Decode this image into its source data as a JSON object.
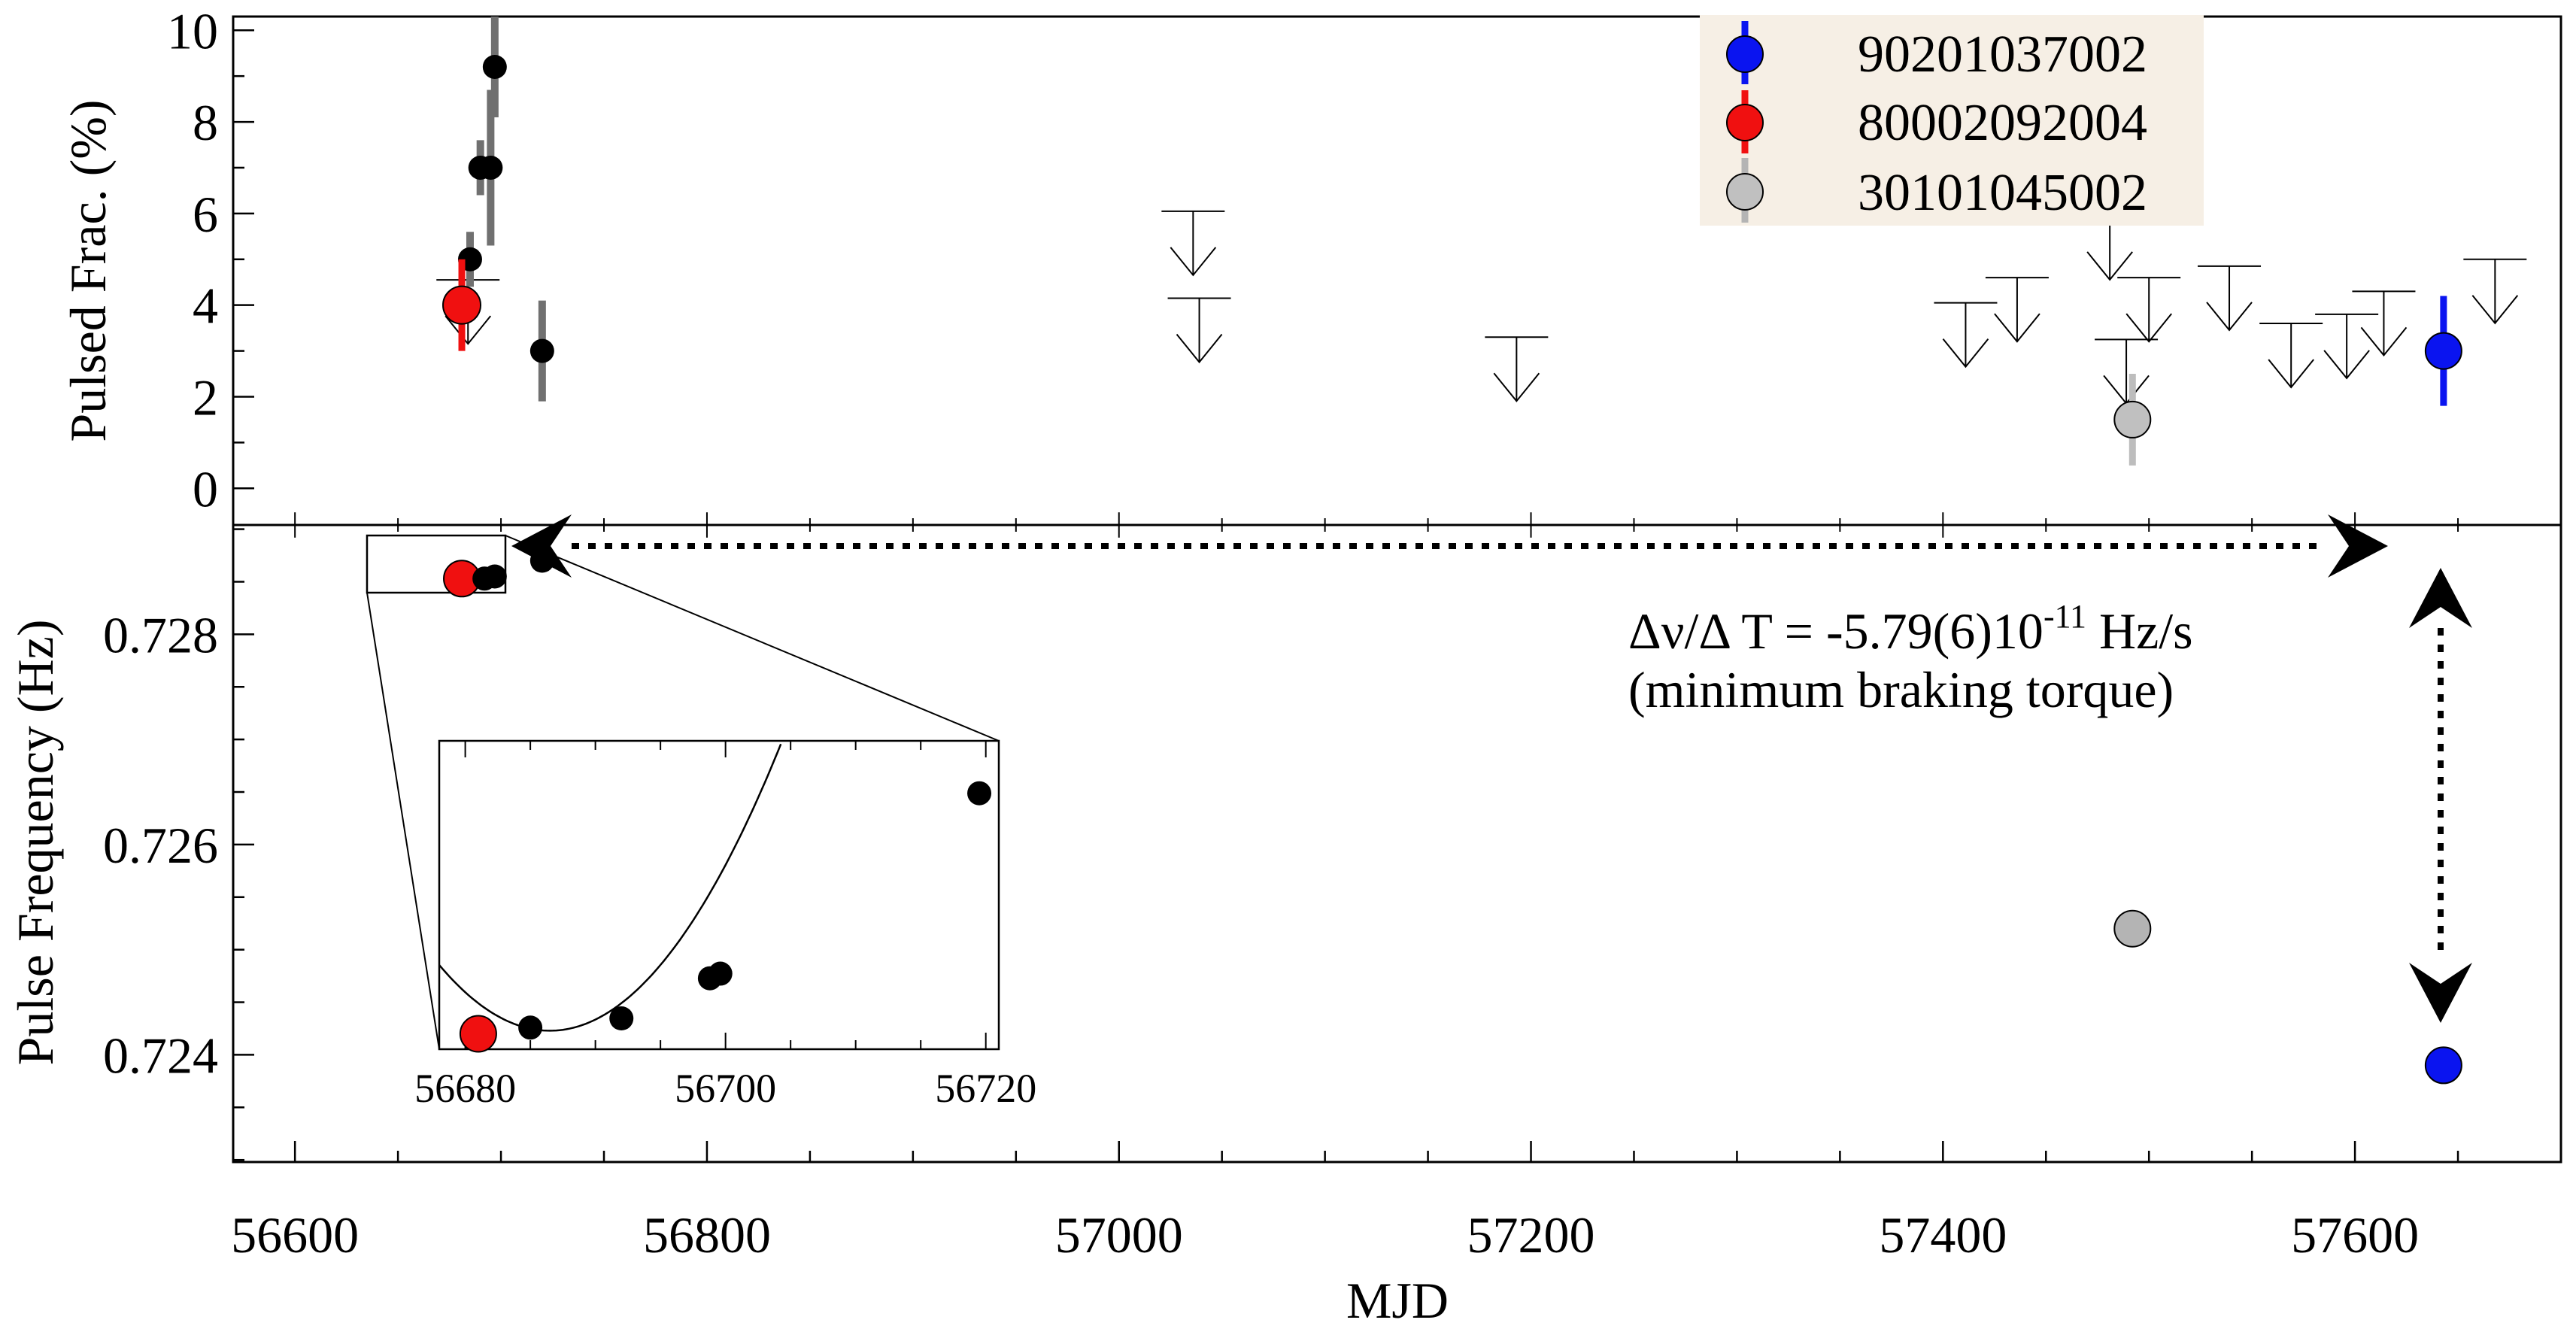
{
  "chart_data": [
    {
      "panel": "top",
      "type": "scatter",
      "ylabel": "Pulsed Frac. (%)",
      "ylim": [
        -0.8,
        10.3
      ],
      "yticks": [
        "0",
        "2",
        "4",
        "6",
        "8",
        "10"
      ],
      "black_points": [
        {
          "x": 56685,
          "y": 5.0,
          "err": 0.6
        },
        {
          "x": 56690,
          "y": 7.0,
          "err": 0.6
        },
        {
          "x": 56695,
          "y": 7.0,
          "err": 1.7
        },
        {
          "x": 56697,
          "y": 9.2,
          "err": 1.1
        },
        {
          "x": 56720,
          "y": 3.0,
          "err": 1.1
        }
      ],
      "upper_limits": [
        {
          "x": 56684,
          "y": 4.55
        },
        {
          "x": 57036,
          "y": 6.05
        },
        {
          "x": 57039,
          "y": 4.15
        },
        {
          "x": 57193,
          "y": 3.3
        },
        {
          "x": 57411,
          "y": 4.05
        },
        {
          "x": 57436,
          "y": 4.6
        },
        {
          "x": 57481,
          "y": 5.95
        },
        {
          "x": 57489,
          "y": 3.25
        },
        {
          "x": 57500,
          "y": 4.6
        },
        {
          "x": 57539,
          "y": 4.85
        },
        {
          "x": 57569,
          "y": 3.6
        },
        {
          "x": 57596,
          "y": 3.8
        },
        {
          "x": 57614,
          "y": 4.3
        },
        {
          "x": 57668,
          "y": 5.0
        }
      ],
      "colored_points": [
        {
          "obs": "80002092004",
          "x": 56681,
          "y": 4.0,
          "err": 1.0
        },
        {
          "obs": "30101045002",
          "x": 57492,
          "y": 1.5,
          "err": 1.0
        },
        {
          "obs": "90201037002",
          "x": 57643,
          "y": 3.0,
          "err": 1.2
        }
      ],
      "legend": {
        "placement": "top-right",
        "entries": [
          {
            "label": "90201037002",
            "color": "#0a14f0"
          },
          {
            "label": "80002092004",
            "color": "#f01010"
          },
          {
            "label": "30101045002",
            "color": "#b4b4b4"
          }
        ]
      }
    },
    {
      "panel": "bottom",
      "type": "scatter",
      "ylabel": "Pulse Frequency (Hz)",
      "xlabel": "MJD",
      "xlim": [
        56570,
        57700
      ],
      "ylim": [
        0.72298,
        0.72904
      ],
      "yticks": [
        "0.724",
        "0.726",
        "0.728"
      ],
      "xticks": [
        "56600",
        "56800",
        "57000",
        "57200",
        "57400",
        "57600"
      ],
      "points": [
        {
          "x": 56681,
          "y": 0.72853,
          "color": "#f01010"
        },
        {
          "x": 56692,
          "y": 0.72853,
          "color": "#000000"
        },
        {
          "x": 56697,
          "y": 0.72855,
          "color": "#000000"
        },
        {
          "x": 56720,
          "y": 0.7287,
          "color": "#000000"
        },
        {
          "x": 57492,
          "y": 0.7252,
          "color": "#b4b4b4"
        },
        {
          "x": 57643,
          "y": 0.7239,
          "color": "#0a14f0"
        }
      ],
      "annotation_line1_prefix": "Δν/Δ T = -5.79(6)10",
      "annotation_exponent": "-11",
      "annotation_line1_suffix": " Hz/s",
      "annotation_line2": "(minimum braking torque)",
      "inset": {
        "xlim": [
          56678,
          56721
        ],
        "xticks": [
          "56680",
          "56700",
          "56720"
        ],
        "points": [
          {
            "x": 56681,
            "y": 0.05,
            "color": "#f01010"
          },
          {
            "x": 56685,
            "y": 0.07,
            "color": "#000000"
          },
          {
            "x": 56692,
            "y": 0.1,
            "color": "#000000"
          },
          {
            "x": 56698.8,
            "y": 0.23,
            "color": "#000000"
          },
          {
            "x": 56699.6,
            "y": 0.245,
            "color": "#000000"
          },
          {
            "x": 56719.5,
            "y": 0.83,
            "color": "#000000"
          }
        ],
        "fit": {
          "a": 0.00295,
          "x0": 56686.5,
          "c": 0.06
        }
      }
    }
  ]
}
